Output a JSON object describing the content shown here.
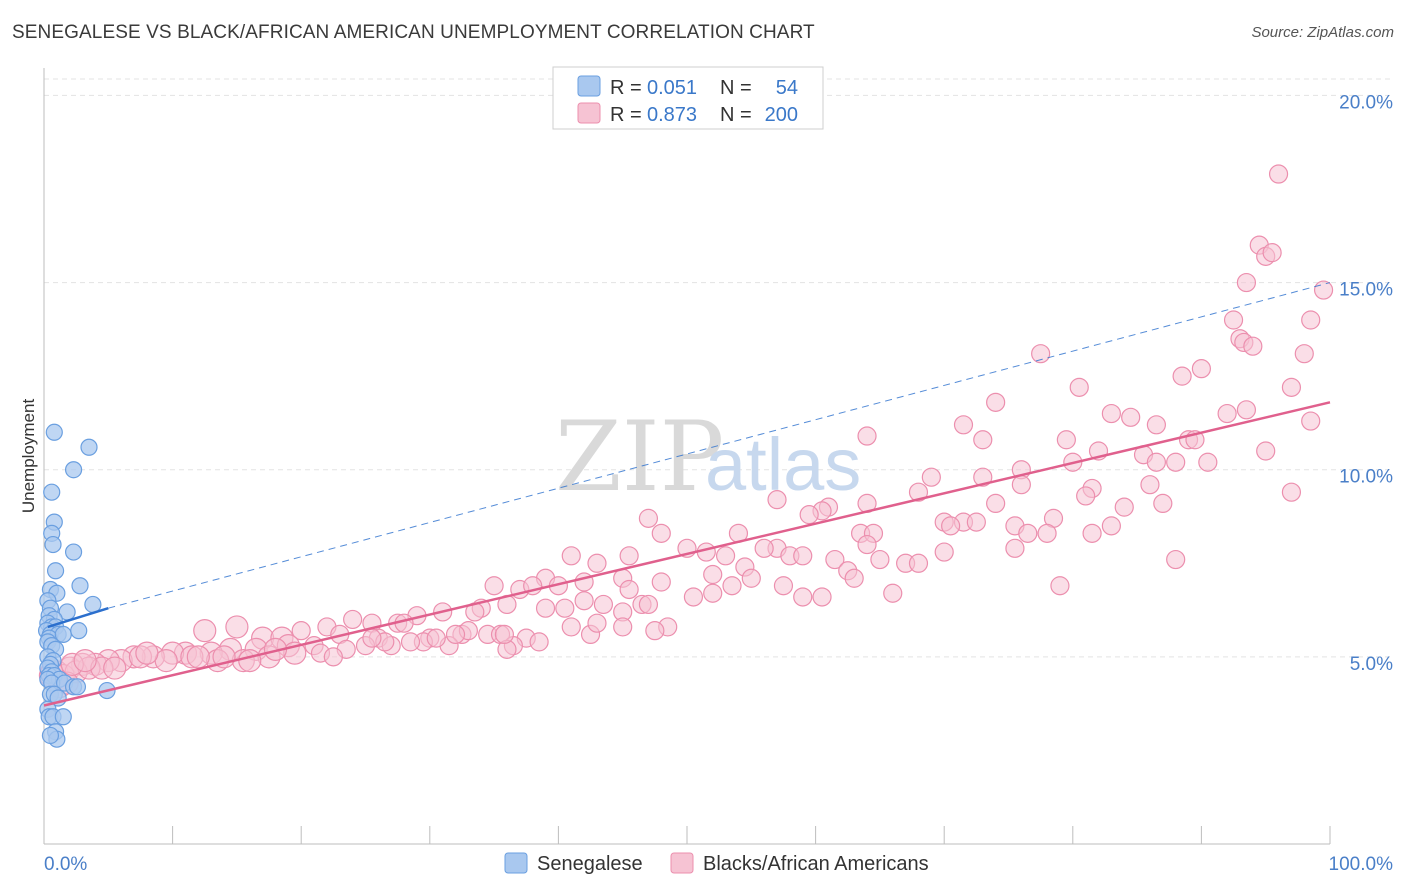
{
  "title": "SENEGALESE VS BLACK/AFRICAN AMERICAN UNEMPLOYMENT CORRELATION CHART",
  "source": "Source: ZipAtlas.com",
  "watermark": {
    "zip": "ZIP",
    "atlas": "atlas"
  },
  "colors": {
    "blue_fill": "#a9c8ef",
    "blue_stroke": "#6a9fe0",
    "blue_line": "#2b6fcd",
    "pink_fill": "#f6c3d3",
    "pink_stroke": "#ec8fae",
    "pink_line": "#e0608d",
    "grid": "#e3e3e3",
    "tick_text": "#4a7fc8"
  },
  "legend": {
    "rows": [
      {
        "r_label": "R =",
        "r_value": "0.051",
        "n_label": "N =",
        "n_value": "54",
        "series": "senegalese"
      },
      {
        "r_label": "R =",
        "r_value": "0.873",
        "n_label": "N =",
        "n_value": "200",
        "series": "black"
      }
    ]
  },
  "bottom_legend": [
    "Senegalese",
    "Blacks/African Americans"
  ],
  "chart_data": {
    "type": "scatter",
    "title": "SENEGALESE VS BLACK/AFRICAN AMERICAN UNEMPLOYMENT CORRELATION CHART",
    "xlabel": "",
    "ylabel": "Unemployment",
    "xlim": [
      0,
      100
    ],
    "ylim": [
      0,
      21
    ],
    "x_tick_labels": [
      "0.0%",
      "100.0%"
    ],
    "y_ticks": [
      5,
      10,
      15,
      20
    ],
    "y_tick_labels": [
      "5.0%",
      "10.0%",
      "15.0%",
      "20.0%"
    ],
    "grid": true,
    "series": [
      {
        "name": "Senegalese",
        "r": 0.051,
        "n": 54,
        "trend": {
          "x0": 0.3,
          "y0": 5.8,
          "x1": 5.0,
          "y1": 6.3,
          "dashed_to_x": 100,
          "dashed_to_y": 15.0
        },
        "points": [
          [
            0.8,
            11.0
          ],
          [
            3.5,
            10.6
          ],
          [
            2.3,
            10.0
          ],
          [
            0.6,
            9.4
          ],
          [
            0.8,
            8.6
          ],
          [
            0.6,
            8.3
          ],
          [
            0.7,
            8.0
          ],
          [
            2.3,
            7.8
          ],
          [
            0.9,
            7.3
          ],
          [
            0.5,
            6.8
          ],
          [
            2.8,
            6.9
          ],
          [
            1.0,
            6.7
          ],
          [
            0.3,
            6.5
          ],
          [
            0.5,
            6.3
          ],
          [
            1.8,
            6.2
          ],
          [
            3.8,
            6.4
          ],
          [
            0.4,
            6.1
          ],
          [
            0.8,
            6.0
          ],
          [
            0.3,
            5.9
          ],
          [
            0.6,
            5.8
          ],
          [
            0.9,
            5.8
          ],
          [
            0.2,
            5.7
          ],
          [
            0.5,
            5.6
          ],
          [
            1.1,
            5.6
          ],
          [
            0.4,
            5.5
          ],
          [
            1.5,
            5.6
          ],
          [
            2.7,
            5.7
          ],
          [
            0.3,
            5.4
          ],
          [
            0.6,
            5.3
          ],
          [
            0.9,
            5.2
          ],
          [
            0.3,
            5.0
          ],
          [
            0.7,
            4.9
          ],
          [
            0.5,
            4.8
          ],
          [
            0.3,
            4.7
          ],
          [
            0.6,
            4.6
          ],
          [
            0.4,
            4.5
          ],
          [
            0.8,
            4.5
          ],
          [
            1.2,
            4.4
          ],
          [
            0.3,
            4.4
          ],
          [
            0.6,
            4.3
          ],
          [
            1.6,
            4.3
          ],
          [
            2.3,
            4.2
          ],
          [
            2.6,
            4.2
          ],
          [
            0.5,
            4.0
          ],
          [
            0.8,
            4.0
          ],
          [
            4.9,
            4.1
          ],
          [
            1.1,
            3.9
          ],
          [
            0.3,
            3.6
          ],
          [
            0.4,
            3.4
          ],
          [
            0.7,
            3.4
          ],
          [
            1.5,
            3.4
          ],
          [
            0.9,
            3.0
          ],
          [
            1.0,
            2.8
          ],
          [
            0.5,
            2.9
          ]
        ]
      },
      {
        "name": "Blacks/African Americans",
        "r": 0.873,
        "n": 200,
        "trend": {
          "x0": 0,
          "y0": 3.7,
          "x1": 100,
          "y1": 11.8
        },
        "points": [
          [
            96.0,
            17.9
          ],
          [
            94.5,
            16.0
          ],
          [
            95.0,
            15.7
          ],
          [
            95.5,
            15.8
          ],
          [
            93.5,
            15.0
          ],
          [
            99.5,
            14.8
          ],
          [
            98.5,
            14.0
          ],
          [
            92.5,
            14.0
          ],
          [
            93.0,
            13.5
          ],
          [
            93.3,
            13.4
          ],
          [
            94.0,
            13.3
          ],
          [
            77.5,
            13.1
          ],
          [
            98.0,
            13.1
          ],
          [
            90.0,
            12.7
          ],
          [
            88.5,
            12.5
          ],
          [
            80.5,
            12.2
          ],
          [
            97.0,
            12.2
          ],
          [
            74.0,
            11.8
          ],
          [
            83.0,
            11.5
          ],
          [
            84.5,
            11.4
          ],
          [
            92.0,
            11.5
          ],
          [
            93.5,
            11.6
          ],
          [
            71.5,
            11.2
          ],
          [
            86.5,
            11.2
          ],
          [
            98.5,
            11.3
          ],
          [
            64.0,
            10.9
          ],
          [
            73.0,
            10.8
          ],
          [
            79.5,
            10.8
          ],
          [
            89.0,
            10.8
          ],
          [
            89.5,
            10.8
          ],
          [
            82.0,
            10.5
          ],
          [
            85.5,
            10.4
          ],
          [
            95.0,
            10.5
          ],
          [
            88.0,
            10.2
          ],
          [
            90.5,
            10.2
          ],
          [
            86.5,
            10.2
          ],
          [
            80.0,
            10.2
          ],
          [
            76.0,
            10.0
          ],
          [
            69.0,
            9.8
          ],
          [
            73.0,
            9.8
          ],
          [
            76.0,
            9.6
          ],
          [
            86.0,
            9.6
          ],
          [
            81.5,
            9.5
          ],
          [
            68.0,
            9.4
          ],
          [
            97.0,
            9.4
          ],
          [
            81.0,
            9.3
          ],
          [
            57.0,
            9.2
          ],
          [
            64.0,
            9.1
          ],
          [
            74.0,
            9.1
          ],
          [
            84.0,
            9.0
          ],
          [
            87.0,
            9.1
          ],
          [
            61.0,
            9.0
          ],
          [
            60.5,
            8.9
          ],
          [
            59.5,
            8.8
          ],
          [
            47.0,
            8.7
          ],
          [
            78.5,
            8.7
          ],
          [
            70.0,
            8.6
          ],
          [
            71.5,
            8.6
          ],
          [
            72.5,
            8.6
          ],
          [
            70.5,
            8.5
          ],
          [
            75.5,
            8.5
          ],
          [
            83.0,
            8.5
          ],
          [
            63.5,
            8.3
          ],
          [
            64.5,
            8.3
          ],
          [
            48.0,
            8.3
          ],
          [
            54.0,
            8.3
          ],
          [
            76.5,
            8.3
          ],
          [
            78.0,
            8.3
          ],
          [
            81.5,
            8.3
          ],
          [
            64.0,
            8.0
          ],
          [
            57.0,
            7.9
          ],
          [
            50.0,
            7.9
          ],
          [
            51.5,
            7.8
          ],
          [
            56.0,
            7.9
          ],
          [
            58.0,
            7.7
          ],
          [
            59.0,
            7.7
          ],
          [
            70.0,
            7.8
          ],
          [
            75.5,
            7.9
          ],
          [
            45.5,
            7.7
          ],
          [
            53.0,
            7.7
          ],
          [
            41.0,
            7.7
          ],
          [
            61.5,
            7.6
          ],
          [
            65.0,
            7.6
          ],
          [
            67.0,
            7.5
          ],
          [
            54.5,
            7.4
          ],
          [
            62.5,
            7.3
          ],
          [
            68.0,
            7.5
          ],
          [
            88.0,
            7.6
          ],
          [
            43.0,
            7.5
          ],
          [
            52.0,
            7.2
          ],
          [
            55.0,
            7.1
          ],
          [
            63.0,
            7.1
          ],
          [
            48.0,
            7.0
          ],
          [
            45.0,
            7.1
          ],
          [
            39.0,
            7.1
          ],
          [
            42.0,
            7.0
          ],
          [
            53.5,
            6.9
          ],
          [
            57.5,
            6.9
          ],
          [
            45.5,
            6.8
          ],
          [
            35.0,
            6.9
          ],
          [
            37.0,
            6.8
          ],
          [
            38.0,
            6.9
          ],
          [
            40.0,
            6.9
          ],
          [
            79.0,
            6.9
          ],
          [
            66.0,
            6.7
          ],
          [
            52.0,
            6.7
          ],
          [
            59.0,
            6.6
          ],
          [
            60.5,
            6.6
          ],
          [
            50.5,
            6.6
          ],
          [
            46.5,
            6.4
          ],
          [
            47.0,
            6.4
          ],
          [
            43.5,
            6.4
          ],
          [
            42.0,
            6.5
          ],
          [
            45.0,
            6.2
          ],
          [
            36.0,
            6.4
          ],
          [
            34.0,
            6.3
          ],
          [
            33.5,
            6.2
          ],
          [
            31.0,
            6.2
          ],
          [
            29.0,
            6.1
          ],
          [
            24.0,
            6.0
          ],
          [
            27.5,
            5.9
          ],
          [
            28.0,
            5.9
          ],
          [
            25.5,
            5.9
          ],
          [
            22.0,
            5.8
          ],
          [
            20.0,
            5.7
          ],
          [
            15.0,
            5.8
          ],
          [
            12.5,
            5.7
          ],
          [
            23.0,
            5.6
          ],
          [
            26.0,
            5.5
          ],
          [
            17.0,
            5.5
          ],
          [
            18.5,
            5.5
          ],
          [
            30.0,
            5.5
          ],
          [
            32.5,
            5.6
          ],
          [
            33.0,
            5.7
          ],
          [
            34.5,
            5.6
          ],
          [
            35.5,
            5.6
          ],
          [
            42.5,
            5.6
          ],
          [
            41.0,
            5.8
          ],
          [
            39.0,
            6.3
          ],
          [
            40.5,
            6.3
          ],
          [
            48.5,
            5.8
          ],
          [
            47.5,
            5.7
          ],
          [
            45.0,
            5.8
          ],
          [
            43.0,
            5.9
          ],
          [
            37.5,
            5.5
          ],
          [
            38.5,
            5.4
          ],
          [
            36.5,
            5.3
          ],
          [
            31.5,
            5.3
          ],
          [
            29.5,
            5.4
          ],
          [
            27.0,
            5.3
          ],
          [
            21.0,
            5.3
          ],
          [
            19.0,
            5.3
          ],
          [
            16.5,
            5.2
          ],
          [
            14.5,
            5.2
          ],
          [
            13.0,
            5.1
          ],
          [
            11.0,
            5.1
          ],
          [
            10.0,
            5.1
          ],
          [
            8.5,
            5.0
          ],
          [
            7.0,
            5.0
          ],
          [
            6.0,
            4.9
          ],
          [
            5.0,
            4.9
          ],
          [
            4.0,
            4.8
          ],
          [
            3.0,
            4.8
          ],
          [
            2.0,
            4.7
          ],
          [
            1.0,
            4.6
          ],
          [
            0.5,
            4.5
          ],
          [
            0.8,
            4.4
          ],
          [
            1.5,
            4.5
          ],
          [
            2.5,
            4.6
          ],
          [
            3.5,
            4.7
          ],
          [
            4.5,
            4.7
          ],
          [
            9.5,
            4.9
          ],
          [
            11.5,
            5.0
          ],
          [
            13.5,
            4.9
          ],
          [
            15.5,
            4.9
          ],
          [
            17.5,
            5.0
          ],
          [
            19.5,
            5.1
          ],
          [
            21.5,
            5.1
          ],
          [
            23.5,
            5.2
          ],
          [
            25.0,
            5.3
          ],
          [
            26.5,
            5.4
          ],
          [
            28.5,
            5.4
          ],
          [
            30.5,
            5.5
          ],
          [
            32.0,
            5.6
          ],
          [
            1.2,
            4.2
          ],
          [
            1.8,
            4.3
          ],
          [
            0.6,
            4.6
          ],
          [
            2.2,
            4.8
          ],
          [
            7.5,
            5.0
          ],
          [
            16.0,
            4.9
          ],
          [
            25.5,
            5.5
          ],
          [
            22.5,
            5.0
          ],
          [
            5.5,
            4.7
          ],
          [
            3.2,
            4.9
          ],
          [
            12.0,
            5.0
          ],
          [
            8.0,
            5.1
          ],
          [
            36.0,
            5.2
          ],
          [
            35.8,
            5.6
          ],
          [
            18.0,
            5.2
          ],
          [
            14.0,
            5.0
          ]
        ]
      }
    ]
  }
}
